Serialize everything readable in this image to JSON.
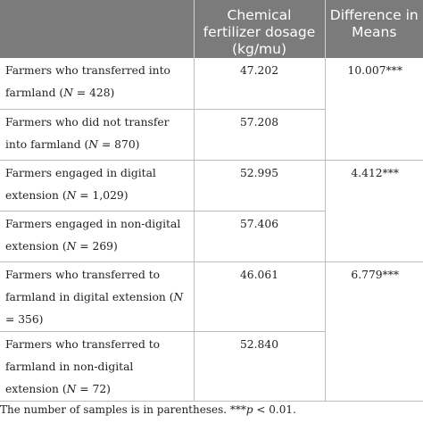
{
  "headers": [
    "",
    "Chemical fertilizer dosage (kg/mu)",
    "Difference in Means"
  ],
  "rows": [
    {
      "label_pre": "Farmers who transferred into farmland (",
      "n": "N",
      "label_post": " = 428)",
      "value": "47.202",
      "diff": "10.007***"
    },
    {
      "label_pre": "Farmers who did not transfer into farmland (",
      "n": "N",
      "label_post": " = 870)",
      "value": "57.208",
      "diff": ""
    },
    {
      "label_pre": "Farmers engaged in digital extension (",
      "n": "N",
      "label_post": " = 1,029)",
      "value": "52.995",
      "diff": "4.412***"
    },
    {
      "label_pre": "Farmers engaged in non-digital extension (",
      "n": "N",
      "label_post": " = 269)",
      "value": "57.406",
      "diff": ""
    },
    {
      "label_pre": "Farmers who transferred to farmland in digital extension (",
      "n": "N",
      "label_post": " = 356)",
      "value": "46.061",
      "diff": "6.779***"
    },
    {
      "label_pre": "Farmers who transferred to farmland in non-digital extension (",
      "n": "N",
      "label_post": " = 72)",
      "value": "52.840",
      "diff": ""
    }
  ],
  "footnote": {
    "pre": "The number of samples is in parentheses. ***",
    "p": "p",
    "post": " < 0.01."
  }
}
